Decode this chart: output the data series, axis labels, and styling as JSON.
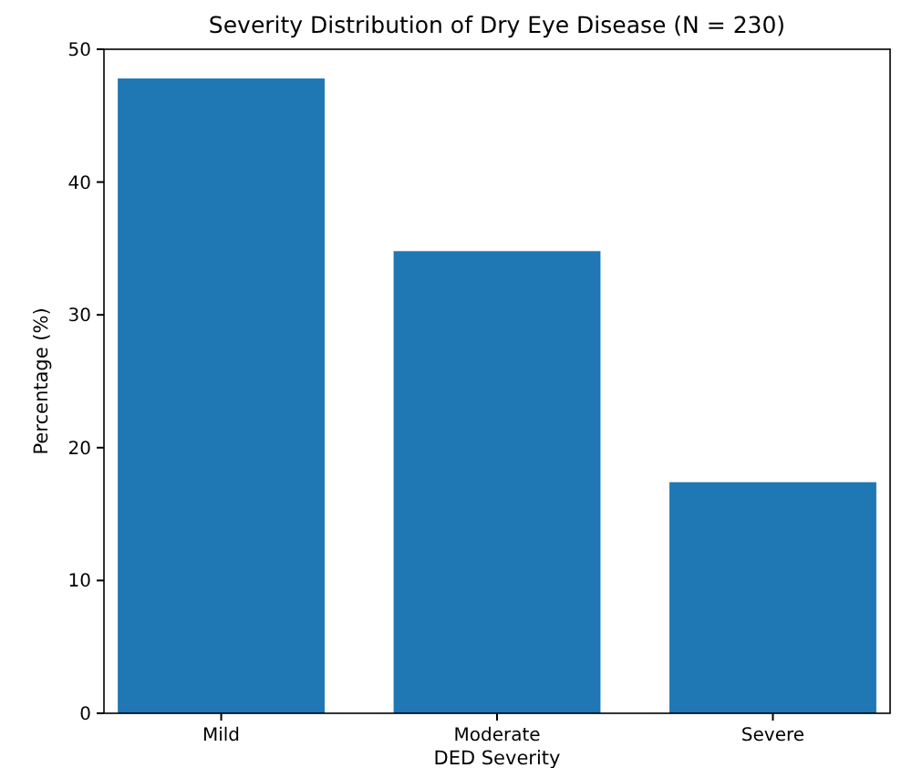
{
  "chart_data": {
    "type": "bar",
    "title": "Severity Distribution of Dry Eye Disease (N = 230)",
    "xlabel": "DED Severity",
    "ylabel": "Percentage (%)",
    "categories": [
      "Mild",
      "Moderate",
      "Severe"
    ],
    "values": [
      47.8,
      34.8,
      17.4
    ],
    "color": "#1f77b4",
    "ylim": [
      0,
      50
    ],
    "yticks": [
      0,
      10,
      20,
      30,
      40,
      50
    ],
    "grid": false
  }
}
